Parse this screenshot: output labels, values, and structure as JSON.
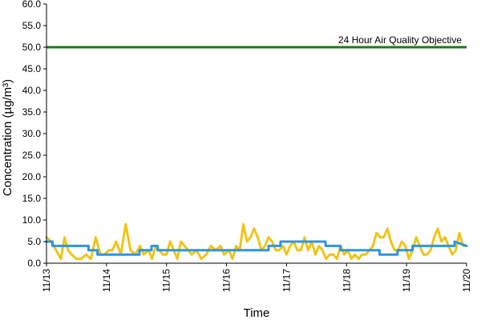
{
  "chart_data": {
    "type": "line",
    "title": "",
    "xlabel": "Time",
    "ylabel": "Concentration (µg/m³)",
    "ylim": [
      0,
      60
    ],
    "yticks": [
      "0.0",
      "5.0",
      "10.0",
      "15.0",
      "20.0",
      "25.0",
      "30.0",
      "35.0",
      "40.0",
      "45.0",
      "50.0",
      "55.0",
      "60.0"
    ],
    "xlim": [
      0,
      7
    ],
    "xticks": [
      "11/13",
      "11/14",
      "11/15",
      "11/16",
      "11/17",
      "11/18",
      "11/19",
      "11/20"
    ],
    "grid": false,
    "reference_line": {
      "value": 50.0,
      "label": "24 Hour Air Quality Objective",
      "color": "#1a7a1a"
    },
    "series": [
      {
        "color": "#f0c419",
        "x": [
          0.0,
          0.08,
          0.16,
          0.24,
          0.3,
          0.36,
          0.42,
          0.5,
          0.58,
          0.66,
          0.74,
          0.82,
          0.9,
          0.96,
          1.04,
          1.1,
          1.16,
          1.24,
          1.32,
          1.4,
          1.48,
          1.56,
          1.62,
          1.7,
          1.76,
          1.82,
          1.88,
          1.94,
          2.0,
          2.06,
          2.12,
          2.18,
          2.24,
          2.3,
          2.36,
          2.42,
          2.5,
          2.58,
          2.66,
          2.74,
          2.82,
          2.9,
          2.96,
          3.04,
          3.1,
          3.16,
          3.22,
          3.28,
          3.34,
          3.4,
          3.46,
          3.52,
          3.58,
          3.64,
          3.7,
          3.76,
          3.82,
          3.88,
          3.94,
          4.0,
          4.06,
          4.12,
          4.18,
          4.24,
          4.3,
          4.36,
          4.42,
          4.48,
          4.54,
          4.6,
          4.66,
          4.72,
          4.78,
          4.84,
          4.9,
          4.96,
          5.02,
          5.08,
          5.14,
          5.2,
          5.26,
          5.32,
          5.38,
          5.44,
          5.5,
          5.56,
          5.62,
          5.68,
          5.74,
          5.8,
          5.86,
          5.92,
          5.98,
          6.04,
          6.1,
          6.16,
          6.22,
          6.28,
          6.34,
          6.4,
          6.46,
          6.52,
          6.58,
          6.64,
          6.7,
          6.76,
          6.82,
          6.88,
          6.94,
          7.0
        ],
        "values": [
          6,
          5,
          3,
          1,
          6,
          3,
          2,
          1,
          1,
          2,
          1,
          6,
          2,
          2,
          3,
          3,
          5,
          2,
          9,
          3,
          2,
          4,
          2,
          3,
          1,
          4,
          3,
          2,
          2,
          5,
          3,
          1,
          5,
          4,
          3,
          2,
          3,
          1,
          2,
          4,
          3,
          4,
          2,
          3,
          1,
          4,
          3,
          9,
          5,
          6,
          8,
          6,
          3,
          4,
          6,
          5,
          3,
          3,
          4,
          2,
          4,
          5,
          3,
          3,
          6,
          3,
          5,
          2,
          4,
          3,
          1,
          2,
          2,
          1,
          4,
          2,
          3,
          1,
          2,
          1,
          2,
          2,
          3,
          4,
          7,
          6,
          6,
          8,
          5,
          3,
          3,
          5,
          4,
          1,
          3,
          6,
          4,
          2,
          2,
          3,
          6,
          8,
          5,
          6,
          4,
          2,
          3,
          7,
          4,
          4
        ]
      },
      {
        "color": "#2f95e0",
        "x": [
          0.0,
          0.1,
          0.1,
          0.7,
          0.7,
          0.85,
          0.85,
          1.55,
          1.55,
          1.75,
          1.75,
          1.85,
          1.85,
          2.7,
          2.7,
          3.7,
          3.7,
          3.9,
          3.9,
          4.65,
          4.65,
          4.9,
          4.9,
          5.55,
          5.55,
          5.85,
          5.85,
          6.1,
          6.1,
          6.8,
          6.8,
          7.0
        ],
        "values": [
          5,
          5,
          4,
          4,
          3,
          3,
          2,
          2,
          3,
          3,
          4,
          4,
          3,
          3,
          3,
          3,
          4,
          4,
          5,
          5,
          4,
          4,
          3,
          3,
          2,
          2,
          3,
          3,
          4,
          4,
          5,
          4
        ]
      }
    ]
  }
}
